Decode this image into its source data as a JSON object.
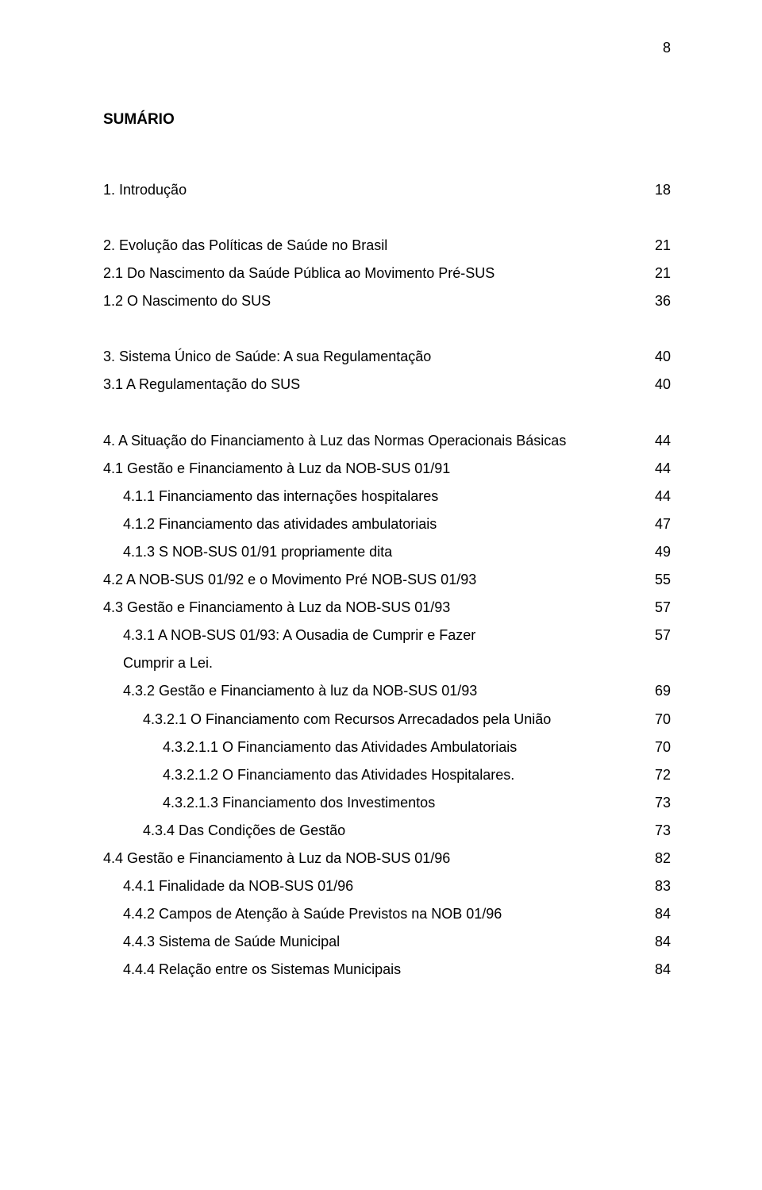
{
  "page_number": "8",
  "title": "SUMÁRIO",
  "font": {
    "family": "Arial",
    "body_size_pt": 14,
    "title_size_pt": 14,
    "title_weight": "bold"
  },
  "colors": {
    "background": "#ffffff",
    "text": "#000000"
  },
  "toc": [
    {
      "label": "1. Introdução",
      "page": "18",
      "indent": 0,
      "spacer_after": true
    },
    {
      "label": "2. Evolução das Políticas de Saúde no Brasil",
      "page": "21",
      "indent": 0
    },
    {
      "label": "2.1 Do Nascimento da Saúde Pública ao Movimento Pré-SUS",
      "page": "21",
      "indent": 0
    },
    {
      "label": "1.2 O Nascimento do SUS",
      "page": "36",
      "indent": 0,
      "spacer_after": true
    },
    {
      "label": "3. Sistema Único de Saúde: A sua Regulamentação",
      "page": "40",
      "indent": 0
    },
    {
      "label": "3.1 A Regulamentação do SUS",
      "page": "40",
      "indent": 0,
      "spacer_after": true
    },
    {
      "label": "4. A Situação do Financiamento à Luz das Normas Operacionais Básicas",
      "page": "44",
      "indent": 0
    },
    {
      "label": "4.1 Gestão e Financiamento à Luz da NOB-SUS 01/91",
      "page": "44",
      "indent": 0
    },
    {
      "label": "4.1.1 Financiamento das internações hospitalares",
      "page": "44",
      "indent": 1
    },
    {
      "label": "4.1.2 Financiamento das atividades ambulatoriais",
      "page": "47",
      "indent": 1
    },
    {
      "label": "4.1.3 S NOB-SUS 01/91 propriamente dita",
      "page": "49",
      "indent": 1
    },
    {
      "label": "4.2 A NOB-SUS 01/92 e o Movimento Pré NOB-SUS 01/93",
      "page": "55",
      "indent": 0
    },
    {
      "label": "4.3 Gestão e Financiamento à Luz da NOB-SUS 01/93",
      "page": "57",
      "indent": 0
    },
    {
      "label": "4.3.1 A NOB-SUS 01/93: A Ousadia de Cumprir e Fazer",
      "page": "57",
      "indent": 1
    },
    {
      "label": "Cumprir a Lei.",
      "page": "",
      "indent": 1
    },
    {
      "label": "4.3.2 Gestão e Financiamento à luz da NOB-SUS 01/93",
      "page": "69",
      "indent": 1
    },
    {
      "label": "4.3.2.1 O Financiamento com Recursos Arrecadados pela União",
      "page": "70",
      "indent": 2
    },
    {
      "label": "4.3.2.1.1 O Financiamento das Atividades Ambulatoriais",
      "page": "70",
      "indent": 3
    },
    {
      "label": "4.3.2.1.2 O Financiamento das Atividades Hospitalares.",
      "page": "72",
      "indent": 3
    },
    {
      "label": "4.3.2.1.3 Financiamento dos Investimentos",
      "page": "73",
      "indent": 3
    },
    {
      "label": "4.3.4 Das Condições de Gestão",
      "page": "73",
      "indent": 2
    },
    {
      "label": "4.4 Gestão e Financiamento à Luz da NOB-SUS 01/96",
      "page": "82",
      "indent": 0
    },
    {
      "label": "4.4.1 Finalidade da NOB-SUS 01/96",
      "page": "83",
      "indent": 1
    },
    {
      "label": "4.4.2 Campos de Atenção à Saúde Previstos na NOB 01/96",
      "page": "84",
      "indent": 1
    },
    {
      "label": "4.4.3 Sistema de Saúde Municipal",
      "page": "84",
      "indent": 1
    },
    {
      "label": "4.4.4 Relação entre os Sistemas Municipais",
      "page": "84",
      "indent": 1
    }
  ]
}
